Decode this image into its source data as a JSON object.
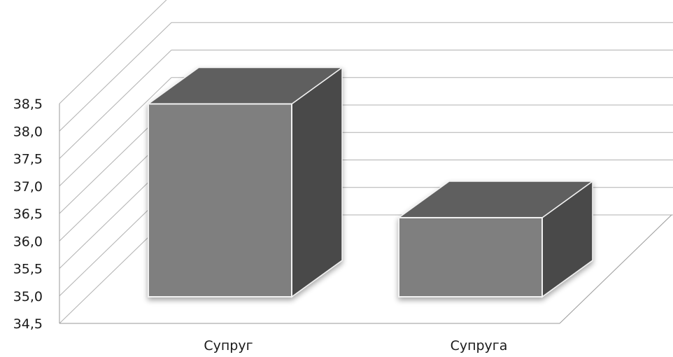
{
  "chart_data": {
    "type": "bar",
    "style": "3d-clustered-column",
    "categories": [
      "Супруг",
      "Супруга"
    ],
    "series": [
      {
        "values": [
          38.4,
          36.1
        ]
      }
    ],
    "ylim": [
      34.5,
      38.5
    ],
    "yticks": [
      "34,5",
      "35,0",
      "35,5",
      "36,0",
      "36,5",
      "37,0",
      "37,5",
      "38,0",
      "38,5"
    ],
    "title": "",
    "xlabel": "",
    "ylabel": "",
    "grid": true,
    "legend": "none",
    "colors": {
      "bar_front": "#7f7f7f",
      "bar_top": "#5e5e5e",
      "bar_side": "#4a4a4a",
      "bar_edge": "#f2f2f2",
      "grid": "#b0b0b0",
      "text": "#1a1a1a"
    }
  }
}
